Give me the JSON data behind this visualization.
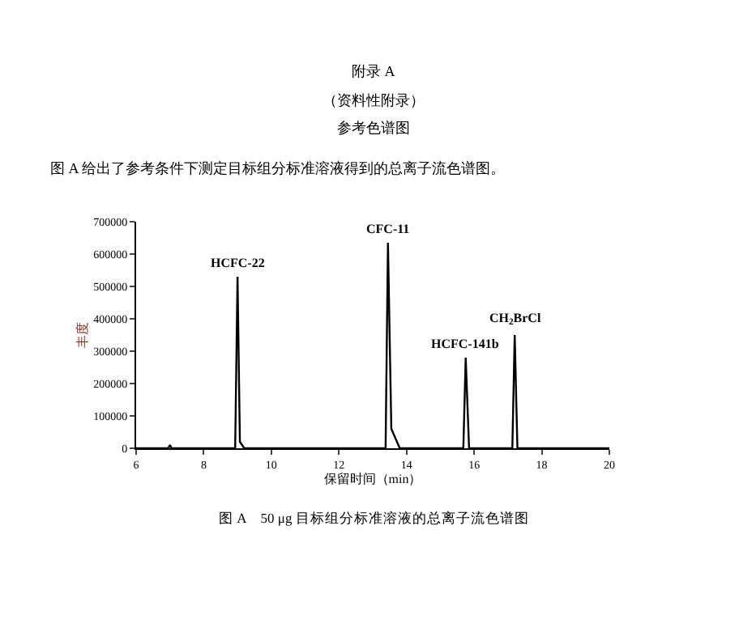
{
  "chart_data": {
    "type": "line",
    "title": "附录 A",
    "subtitle": "（资料性附录）",
    "xlabel": "保留时间（min）",
    "ylabel": "丰度",
    "x": [
      6,
      6.95,
      7.0,
      7.05,
      8.93,
      9.0,
      9.07,
      9.2,
      13.38,
      13.45,
      13.55,
      13.8,
      15.68,
      15.75,
      15.85,
      17.13,
      17.2,
      17.28,
      20
    ],
    "series": [
      {
        "color": "#000000",
        "values": [
          0,
          0,
          10000,
          0,
          0,
          530000,
          20000,
          0,
          0,
          635000,
          60000,
          0,
          0,
          280000,
          0,
          0,
          350000,
          0,
          0
        ]
      }
    ],
    "xlim": [
      6,
      20
    ],
    "xticks": [
      6,
      8,
      10,
      12,
      14,
      16,
      18,
      20
    ],
    "ylim": [
      0,
      700000
    ],
    "yticks": [
      0,
      100000,
      200000,
      300000,
      400000,
      500000,
      600000,
      700000
    ],
    "marker": "none",
    "line_style": "solid",
    "annotations": [
      "参考色谱图",
      "图 A 给出了参考条件下测定目标组分标准溶液得到的总离子流色谱图。",
      "图 A　50 μg 目标组分标准溶液的总离子流色谱图",
      {
        "text": "HCFC-22",
        "x": 9.0,
        "y": 530000
      },
      {
        "text": "CFC-11",
        "x": 13.45,
        "y": 635000
      },
      {
        "text": "HCFC-141b",
        "x": 15.75,
        "y": 280000
      },
      {
        "text": "CH$_{2}$BrCl",
        "x": 17.2,
        "y": 350000
      }
    ]
  }
}
